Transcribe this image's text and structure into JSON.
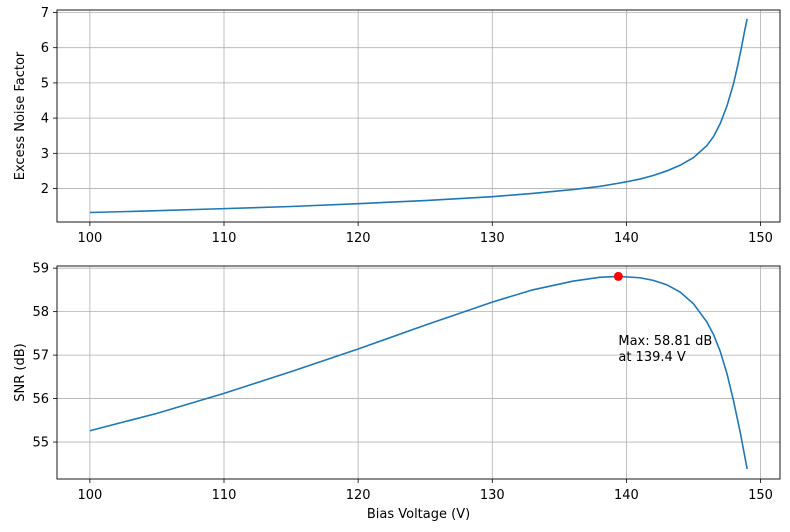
{
  "chart_data": [
    {
      "type": "line",
      "xlabel": "",
      "ylabel": "Excess Noise Factor",
      "xlim": [
        97.55,
        151.45
      ],
      "ylim": [
        1.05,
        7.07
      ],
      "grid": true,
      "xticks": [
        100,
        110,
        120,
        130,
        140,
        150
      ],
      "yticks": [
        2,
        3,
        4,
        5,
        6,
        7
      ],
      "color": "#1f77b4",
      "series": [
        {
          "x": [
            100,
            105,
            110,
            115,
            120,
            125,
            130,
            133,
            136,
            138,
            139.4,
            140,
            141,
            142,
            143,
            144,
            145,
            146,
            146.5,
            147,
            147.5,
            148,
            148.3,
            148.6,
            148.8,
            149
          ],
          "y": [
            1.32,
            1.37,
            1.43,
            1.49,
            1.57,
            1.66,
            1.77,
            1.86,
            1.97,
            2.06,
            2.15,
            2.19,
            2.27,
            2.37,
            2.5,
            2.66,
            2.88,
            3.22,
            3.48,
            3.85,
            4.35,
            5.0,
            5.5,
            6.05,
            6.45,
            6.82
          ]
        }
      ]
    },
    {
      "type": "line",
      "xlabel": "Bias Voltage (V)",
      "ylabel": "SNR (dB)",
      "xlim": [
        97.55,
        151.45
      ],
      "ylim": [
        54.15,
        59.05
      ],
      "grid": true,
      "xticks": [
        100,
        110,
        120,
        130,
        140,
        150
      ],
      "yticks": [
        55,
        56,
        57,
        58,
        59
      ],
      "color": "#1f77b4",
      "series": [
        {
          "x": [
            100,
            105,
            110,
            115,
            120,
            125,
            130,
            133,
            136,
            138,
            139.4,
            141,
            142,
            143,
            144,
            145,
            146,
            146.5,
            147,
            147.5,
            148,
            148.5,
            149
          ],
          "y": [
            55.26,
            55.66,
            56.12,
            56.62,
            57.14,
            57.69,
            58.22,
            58.5,
            58.7,
            58.79,
            58.81,
            58.78,
            58.72,
            58.62,
            58.45,
            58.18,
            57.76,
            57.47,
            57.08,
            56.57,
            55.93,
            55.2,
            54.38
          ]
        }
      ],
      "max_point": {
        "x": 139.4,
        "y": 58.81,
        "color": "#ff0000"
      },
      "annotation": {
        "line1": "Max: 58.81 dB",
        "line2": "at 139.4 V",
        "x": 139.4,
        "y": 57.05
      }
    }
  ]
}
